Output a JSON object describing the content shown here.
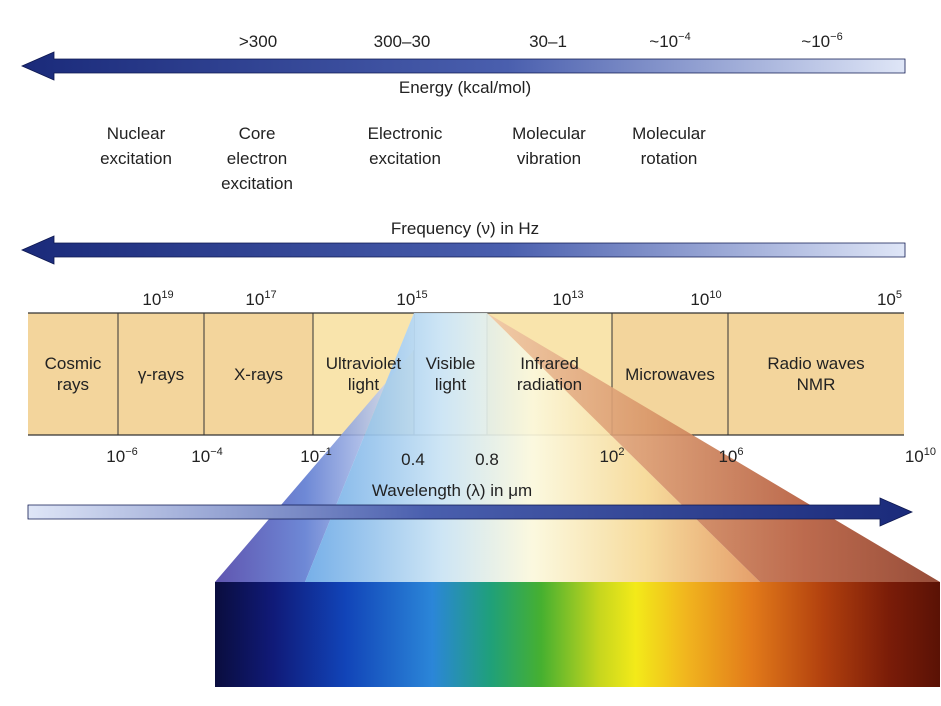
{
  "energy": {
    "title": "Energy (kcal/mol)",
    "values": [
      {
        "base": ">300",
        "exp": ""
      },
      {
        "base": "300–30",
        "exp": ""
      },
      {
        "base": "30–1",
        "exp": ""
      },
      {
        "base": "~10",
        "exp": "−4"
      },
      {
        "base": "~10",
        "exp": "−6"
      }
    ]
  },
  "processes": [
    "Nuclear\nexcitation",
    "Core\nelectron\nexcitation",
    "Electronic\nexcitation",
    "Molecular\nvibration",
    "Molecular\nrotation"
  ],
  "frequency": {
    "title": "Frequency (ν) in Hz",
    "ticks": [
      {
        "base": "10",
        "exp": "19"
      },
      {
        "base": "10",
        "exp": "17"
      },
      {
        "base": "10",
        "exp": "15"
      },
      {
        "base": "10",
        "exp": "13"
      },
      {
        "base": "10",
        "exp": "10"
      },
      {
        "base": "10",
        "exp": "5"
      }
    ]
  },
  "bands": [
    "Cosmic\nrays",
    "γ-rays",
    "X-rays",
    "Ultraviolet\nlight",
    "Visible\nlight",
    "Infrared\nradiation",
    "Microwaves",
    "Radio waves\nNMR"
  ],
  "wavelength": {
    "title": "Wavelength (λ) in μm",
    "ticks": [
      {
        "base": "10",
        "exp": "−6"
      },
      {
        "base": "10",
        "exp": "−4"
      },
      {
        "base": "10",
        "exp": "−1"
      },
      {
        "base": "0.4",
        "exp": ""
      },
      {
        "base": "0.8",
        "exp": ""
      },
      {
        "base": "10",
        "exp": "2"
      },
      {
        "base": "10",
        "exp": "6"
      },
      {
        "base": "10",
        "exp": "10"
      }
    ]
  },
  "colors": {
    "band_fill": "#f3d59c",
    "visible_fill": "#ffffff",
    "arrow_dark": "#1a2a7a",
    "arrow_light": "#dfe6f7"
  }
}
